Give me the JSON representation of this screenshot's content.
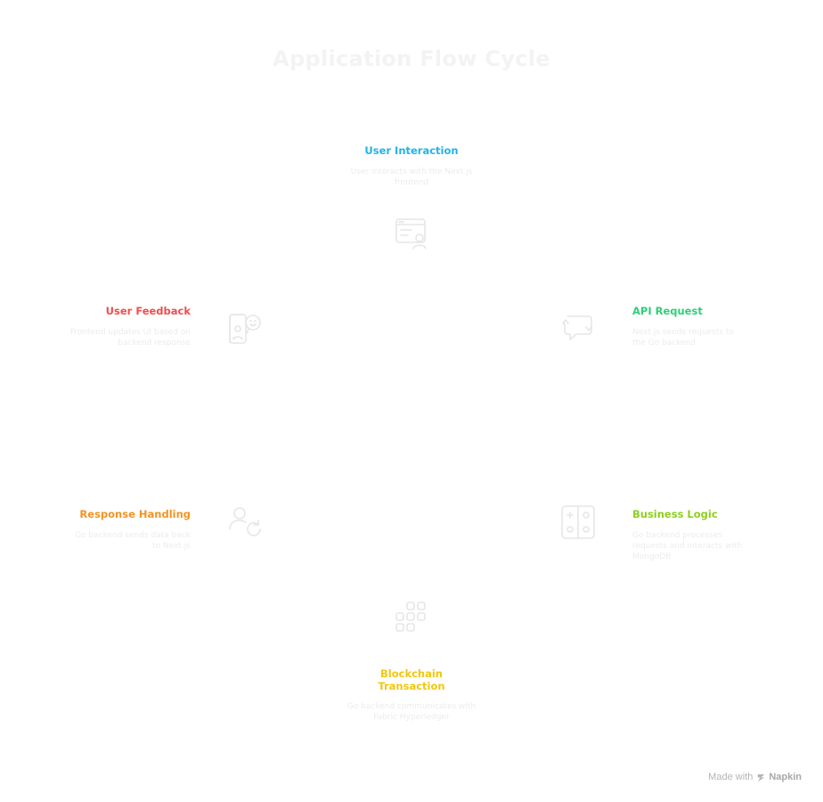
{
  "title": "Application Flow Cycle",
  "nodes": {
    "user_interaction": {
      "title": "User Interaction",
      "description": "User interacts with the Next.js frontend",
      "color": "#22b3e8",
      "icon": "browser-user-icon"
    },
    "api_request": {
      "title": "API Request",
      "description": "Next.js sends requests to the Go backend",
      "color": "#2fcf7a",
      "icon": "message-arrows-icon"
    },
    "business_logic": {
      "title": "Business Logic",
      "description": "Go backend processes requests and interacts with MongoDB",
      "color": "#8ecf1f",
      "icon": "control-panel-icon"
    },
    "blockchain_transaction": {
      "title": "Blockchain Transaction",
      "description": "Go backend communicates with Fabric Hyperledger",
      "color": "#f2c70c",
      "icon": "blocks-icon"
    },
    "response_handling": {
      "title": "Response Handling",
      "description": "Go backend sends data back to Next.js",
      "color": "#f29422",
      "icon": "user-refresh-icon"
    },
    "user_feedback": {
      "title": "User Feedback",
      "description": "Frontend updates UI based on backend response",
      "color": "#ee4e4e",
      "icon": "user-feedback-icon"
    }
  },
  "footer": {
    "made_with": "Made with",
    "brand": "Napkin"
  }
}
